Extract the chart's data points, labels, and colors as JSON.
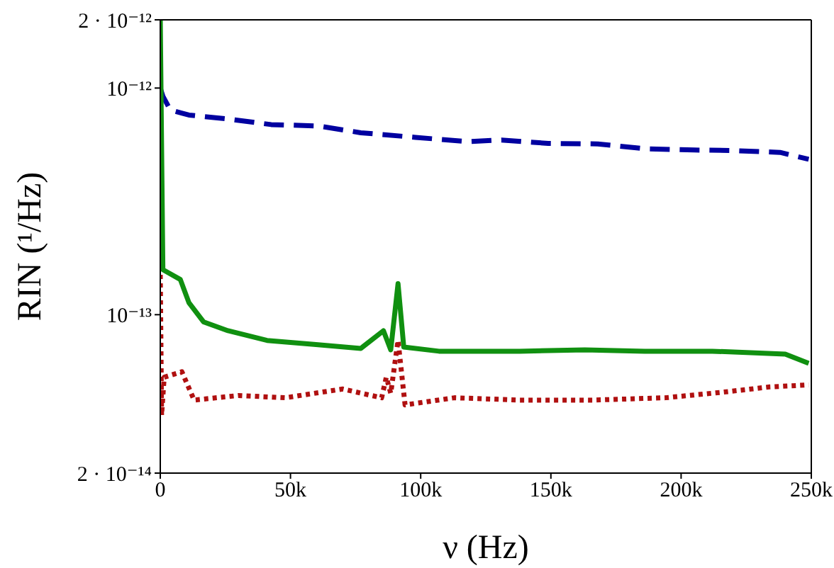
{
  "chart_data": {
    "type": "line",
    "xlabel": "ν (Hz)",
    "ylabel": "RIN (¹/Hz)",
    "log": "y",
    "grid": false,
    "legend": false,
    "marker": "none",
    "xlim": [
      0,
      250000
    ],
    "xticks": [
      0,
      {
        "value": 50000,
        "label": "50k"
      },
      {
        "value": 100000,
        "label": "100k"
      },
      {
        "value": 150000,
        "label": "150k"
      },
      {
        "value": 200000,
        "label": "200k"
      },
      {
        "value": 250000,
        "label": "250k"
      }
    ],
    "ylim": [
      2e-14,
      2e-12
    ],
    "yticks": [
      {
        "value": 2e-14,
        "label": "2 · 10⁻¹⁴"
      },
      {
        "value": 1e-13,
        "label": "10⁻¹³"
      },
      {
        "value": 1e-12,
        "label": "10⁻¹²"
      },
      {
        "value": 2e-12,
        "label": "2 · 10⁻¹²"
      }
    ],
    "series": [
      {
        "color": "#0000a0",
        "line_style": "dashed",
        "x": [
          0,
          1000,
          3900,
          11000,
          26000,
          42600,
          60800,
          77000,
          98000,
          118000,
          131000,
          149000,
          168000,
          186000,
          205000,
          220000,
          238000,
          249000
        ],
        "values": [
          1e-12,
          9.2e-13,
          8e-13,
          7.6e-13,
          7.3e-13,
          6.9e-13,
          6.8e-13,
          6.35e-13,
          6.06e-13,
          5.8e-13,
          5.9e-13,
          5.7e-13,
          5.67e-13,
          5.4e-13,
          5.33e-13,
          5.3e-13,
          5.2e-13,
          4.85e-13
        ]
      },
      {
        "color": "#109010",
        "line_style": "solid",
        "x": [
          0,
          1000,
          7700,
          11000,
          16600,
          26000,
          41000,
          59000,
          77000,
          85700,
          88500,
          91300,
          93500,
          107000,
          129000,
          138000,
          163000,
          186000,
          212000,
          240000,
          249000
        ],
        "values": [
          2e-12,
          1.58e-13,
          1.43e-13,
          1.13e-13,
          9.3e-14,
          8.5e-14,
          7.7e-14,
          7.4e-14,
          7.1e-14,
          8.5e-14,
          7e-14,
          1.37e-13,
          7.2e-14,
          6.9e-14,
          6.9e-14,
          6.9e-14,
          7e-14,
          6.9e-14,
          6.9e-14,
          6.7e-14,
          6.1e-14
        ]
      },
      {
        "color": "#b01010",
        "line_style": "dotted",
        "x": [
          0,
          500,
          1500,
          8300,
          13000,
          30000,
          48000,
          70000,
          85000,
          86800,
          88500,
          91300,
          94000,
          113000,
          138000,
          166000,
          194000,
          216000,
          234000,
          249000
        ],
        "values": [
          1.5e-13,
          3.6e-14,
          5.3e-14,
          5.6e-14,
          4.2e-14,
          4.4e-14,
          4.3e-14,
          4.7e-14,
          4.3e-14,
          5.3e-14,
          4.5e-14,
          7.7e-14,
          4e-14,
          4.3e-14,
          4.2e-14,
          4.2e-14,
          4.3e-14,
          4.55e-14,
          4.8e-14,
          4.9e-14
        ]
      }
    ]
  }
}
